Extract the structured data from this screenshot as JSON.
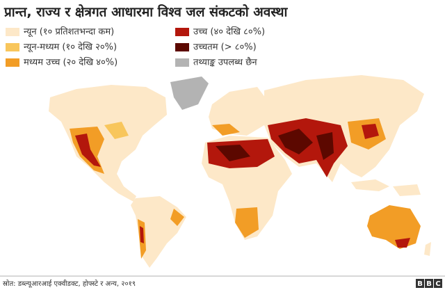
{
  "title": "प्रान्त, राज्य र क्षेत्रगत आधारमा विश्व जल संकटको अवस्था",
  "legend": [
    {
      "label": "न्यून (१० प्रतिशतभन्दा कम)",
      "color": "#fde8c8"
    },
    {
      "label": "न्यून-मध्यम (१० देखि २०%)",
      "color": "#f8c65c"
    },
    {
      "label": "मध्यम उच्च (२० देखि ४०%)",
      "color": "#f29d26"
    },
    {
      "label": "उच्च (४० देखि ८०%)",
      "color": "#b3170c"
    },
    {
      "label": "उच्चतम (> ८०%)",
      "color": "#5c0800"
    },
    {
      "label": "तथ्याङ्क उपलब्ध छैन",
      "color": "#b3b3b3"
    }
  ],
  "source": "स्रोत: डब्ल्यूआरआई एक्वीडक्ट, होफ्स्टे र अन्य, २०१९",
  "logo": [
    "B",
    "B",
    "C"
  ]
}
